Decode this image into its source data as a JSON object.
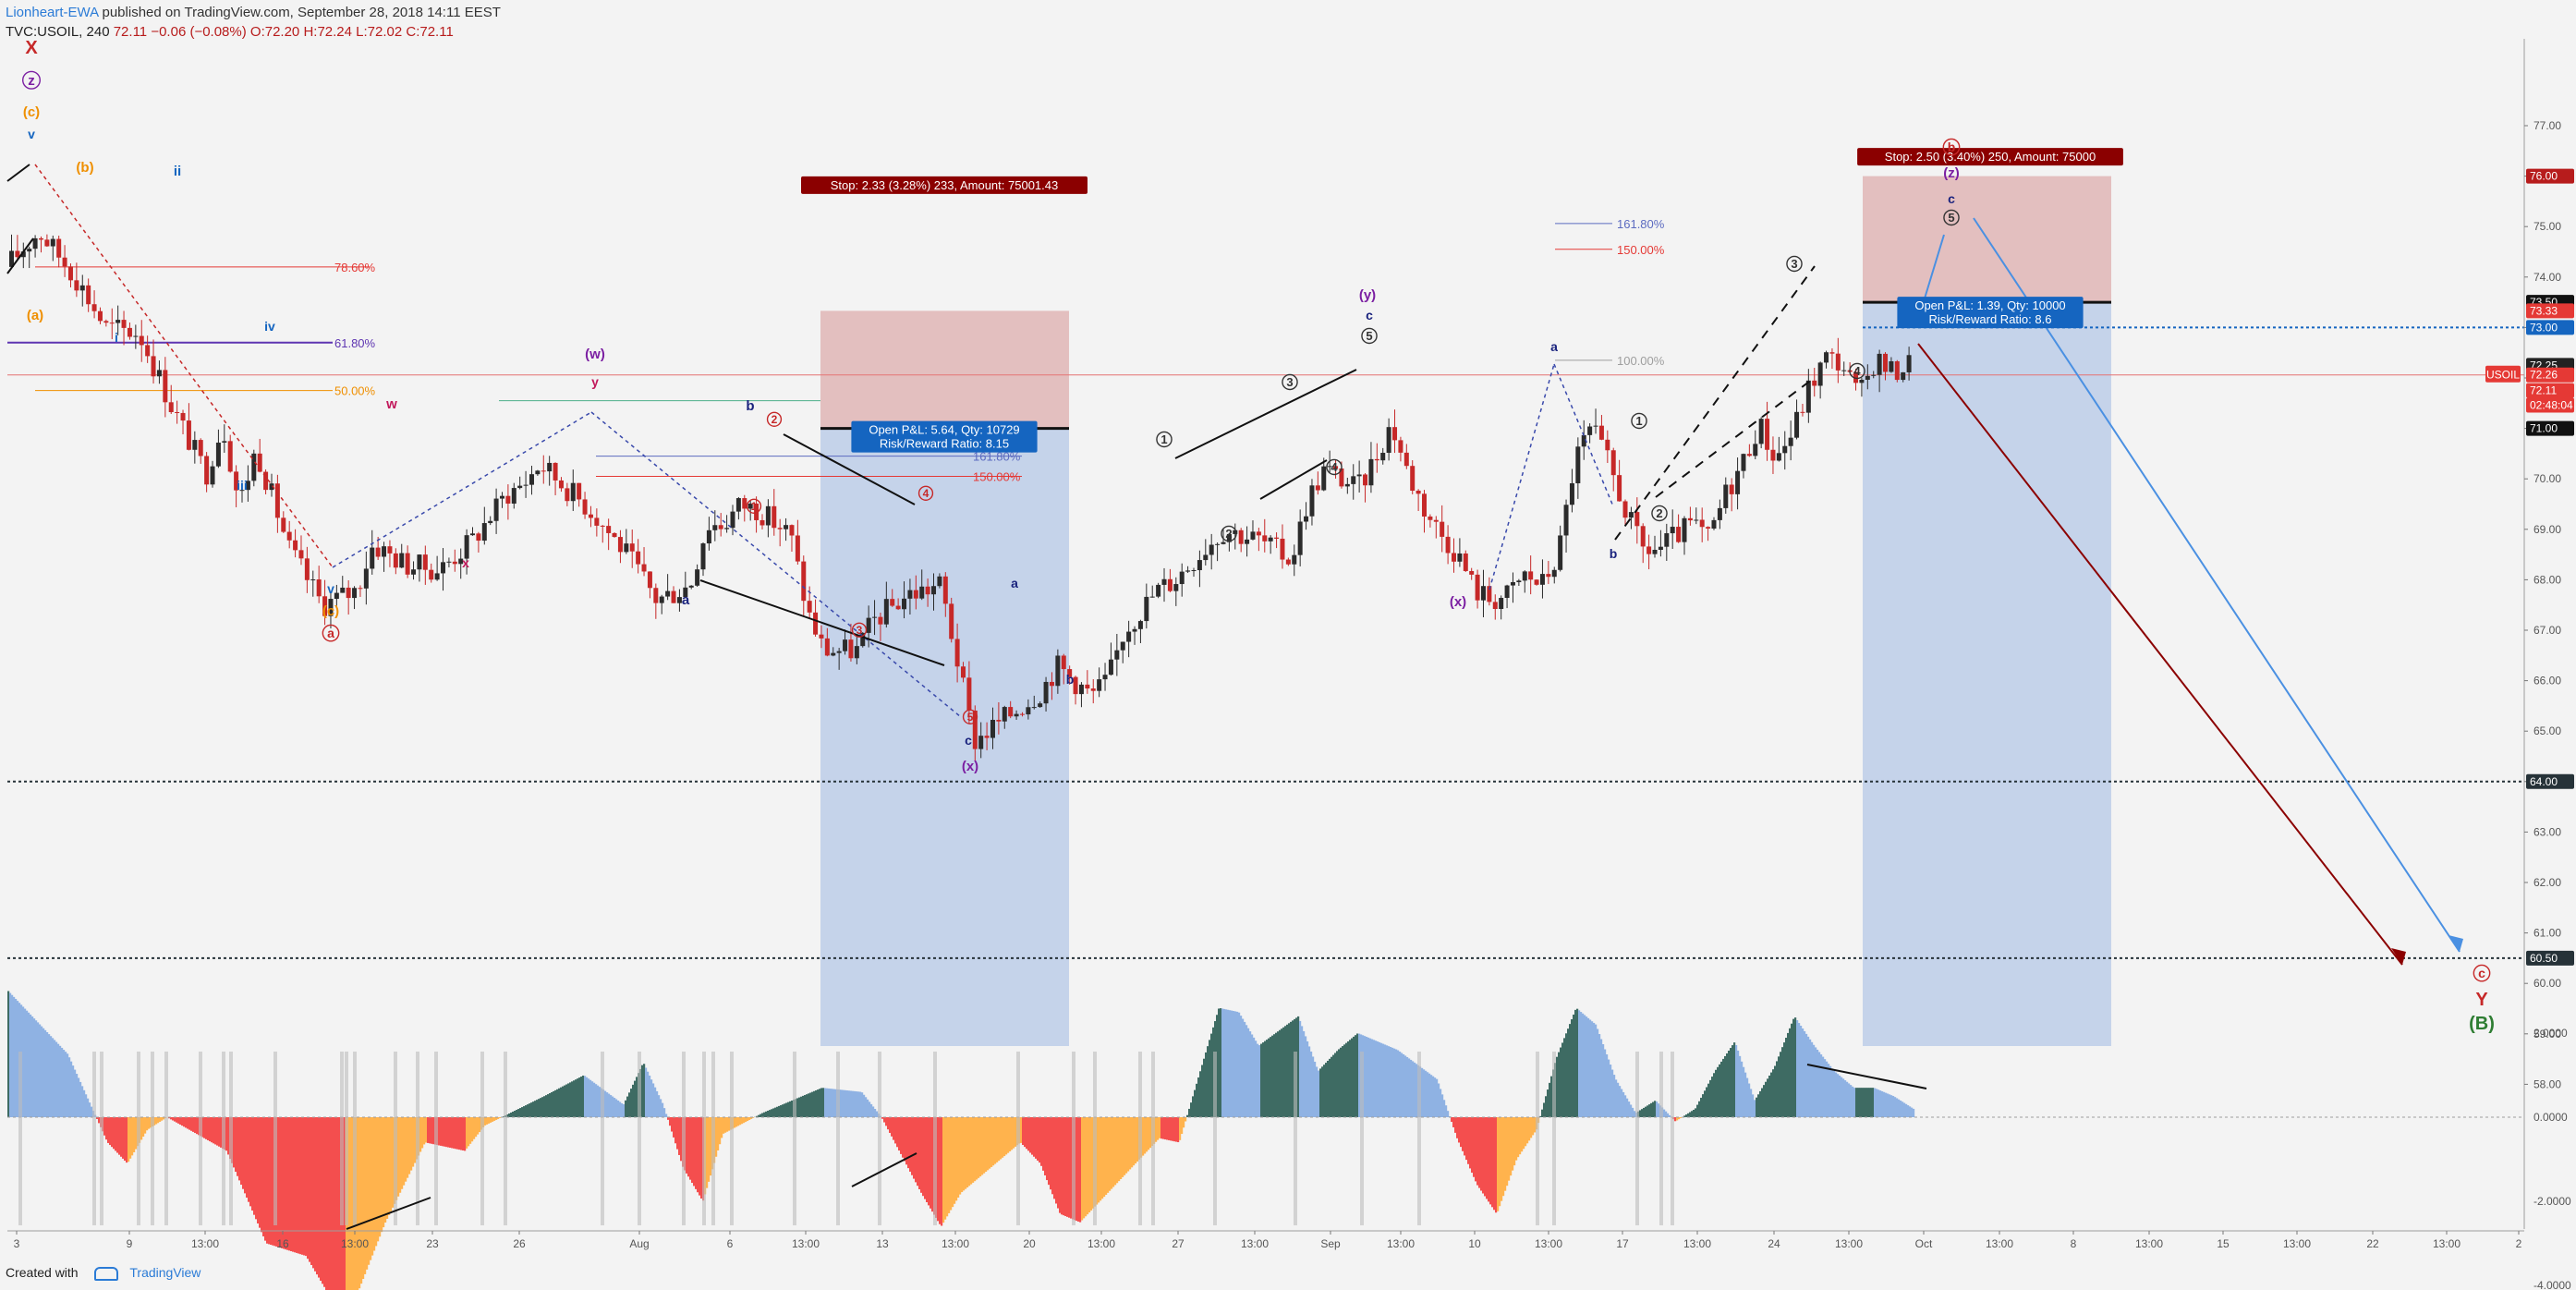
{
  "header": {
    "author": "Lionheart-EWA",
    "published": " published on TradingView.com, September 28, 2018 14:11 EEST",
    "symbol": "TVC:USOIL, 240",
    "last": "72.11",
    "change": "−0.06 (−0.08%)",
    "ohlc": "O:72.20 H:72.24 L:72.02 C:72.11"
  },
  "footer": {
    "created_with": "Created with",
    "brand": "TradingView"
  },
  "colors": {
    "up": "#2b2b2b",
    "down": "#c62828",
    "box_stop": "#e3bfbf",
    "box_target": "#c5d3ea",
    "hist_strong_up": "#3e6b63",
    "hist_weak_up": "#8fb2e3",
    "hist_strong_down": "#f44e4e",
    "hist_weak_down": "#ffb34d"
  },
  "chart_data": [
    {
      "type": "candlestick",
      "title": "",
      "yaxis": {
        "ticks": [
          "77.00",
          "76.00",
          "75.00",
          "74.00",
          "73.00",
          "72.00",
          "71.00",
          "70.00",
          "69.00",
          "68.00",
          "67.00",
          "66.00",
          "65.00",
          "64.00",
          "63.00",
          "62.00",
          "61.00",
          "60.00",
          "59.00",
          "58.00"
        ],
        "ylim": [
          57.7,
          77.5
        ]
      },
      "xaxis": {
        "ticks": [
          "3",
          "9",
          "13:00",
          "16",
          "13:00",
          "23",
          "26",
          "Aug",
          "6",
          "13:00",
          "13",
          "13:00",
          "20",
          "13:00",
          "27",
          "13:00",
          "Sep",
          "13:00",
          "10",
          "13:00",
          "17",
          "13:00",
          "24",
          "13:00",
          "Oct",
          "13:00",
          "8",
          "13:00",
          "15",
          "13:00",
          "22",
          "13:00",
          "2"
        ]
      },
      "price_path": [
        [
          0,
          74.2
        ],
        [
          2,
          74.9
        ],
        [
          4,
          74.1
        ],
        [
          6,
          73.0
        ],
        [
          8,
          72.9
        ],
        [
          10,
          71.4
        ],
        [
          12,
          70.1
        ],
        [
          13,
          71.1
        ],
        [
          14,
          69.5
        ],
        [
          15,
          70.6
        ],
        [
          17,
          68.6
        ],
        [
          19,
          67.5
        ],
        [
          21,
          67.8
        ],
        [
          22,
          68.7
        ],
        [
          24,
          68.3
        ],
        [
          26,
          68.2
        ],
        [
          28,
          68.8
        ],
        [
          30,
          69.7
        ],
        [
          31,
          69.9
        ],
        [
          32,
          70.3
        ],
        [
          33,
          70.0
        ],
        [
          35,
          69.4
        ],
        [
          37,
          68.6
        ],
        [
          39,
          67.6
        ],
        [
          41,
          67.9
        ],
        [
          42,
          69.1
        ],
        [
          43,
          69.1
        ],
        [
          44,
          69.5
        ],
        [
          45,
          69.4
        ],
        [
          47,
          68.9
        ],
        [
          48,
          67.4
        ],
        [
          49,
          66.6
        ],
        [
          51,
          66.6
        ],
        [
          52,
          67.2
        ],
        [
          54,
          67.7
        ],
        [
          56,
          67.9
        ],
        [
          57,
          66.4
        ],
        [
          58,
          64.8
        ],
        [
          60,
          65.3
        ],
        [
          62,
          65.8
        ],
        [
          63,
          66.3
        ],
        [
          65,
          65.7
        ],
        [
          66,
          66.0
        ],
        [
          67,
          67.0
        ],
        [
          69,
          67.8
        ],
        [
          70,
          68.0
        ],
        [
          72,
          68.7
        ],
        [
          73,
          69.0
        ],
        [
          75,
          68.8
        ],
        [
          77,
          68.4
        ],
        [
          78,
          69.6
        ],
        [
          79,
          70.2
        ],
        [
          81,
          69.8
        ],
        [
          82,
          70.4
        ],
        [
          83,
          71.1
        ],
        [
          84,
          70.1
        ],
        [
          85,
          69.4
        ],
        [
          86,
          68.9
        ],
        [
          87,
          68.5
        ],
        [
          88,
          67.8
        ],
        [
          89,
          67.6
        ],
        [
          90,
          67.7
        ],
        [
          91,
          68.1
        ],
        [
          92,
          67.9
        ],
        [
          93,
          68.5
        ],
        [
          94,
          70.4
        ],
        [
          95,
          71.0
        ],
        [
          96,
          70.3
        ],
        [
          97,
          69.4
        ],
        [
          98,
          68.6
        ],
        [
          99,
          68.6
        ],
        [
          101,
          69.1
        ],
        [
          102,
          68.8
        ],
        [
          103,
          69.7
        ],
        [
          104,
          70.3
        ],
        [
          105,
          71.1
        ],
        [
          106,
          70.4
        ],
        [
          107,
          70.9
        ],
        [
          108,
          71.8
        ],
        [
          109,
          72.4
        ],
        [
          110,
          72.3
        ],
        [
          111,
          71.6
        ],
        [
          112,
          72.4
        ],
        [
          113,
          72.1
        ],
        [
          114,
          72.3
        ]
      ]
    },
    {
      "type": "area",
      "title": "",
      "yaxis": {
        "ticks": [
          "2.0000",
          "0.0000",
          "-2.0000",
          "-4.0000"
        ],
        "ylim": [
          -5.0,
          3.0
        ]
      },
      "osc_path": [
        [
          0,
          3.0
        ],
        [
          3,
          1.5
        ],
        [
          5,
          -0.6
        ],
        [
          6,
          -1.1
        ],
        [
          7,
          -0.3
        ],
        [
          8,
          0.0
        ],
        [
          11,
          -0.8
        ],
        [
          13,
          -3.0
        ],
        [
          15,
          -3.3
        ],
        [
          17,
          -4.9
        ],
        [
          19,
          -2.5
        ],
        [
          21,
          -0.6
        ],
        [
          23,
          -0.8
        ],
        [
          24,
          -0.2
        ],
        [
          27,
          0.5
        ],
        [
          29,
          1.0
        ],
        [
          31,
          0.3
        ],
        [
          32,
          1.3
        ],
        [
          33,
          0.3
        ],
        [
          34,
          -1.2
        ],
        [
          35,
          -2.0
        ],
        [
          36,
          -0.4
        ],
        [
          38,
          0.1
        ],
        [
          41,
          0.7
        ],
        [
          43,
          0.6
        ],
        [
          44,
          0.0
        ],
        [
          46,
          -1.8
        ],
        [
          47,
          -2.6
        ],
        [
          48,
          -1.8
        ],
        [
          50,
          -1.0
        ],
        [
          51,
          -0.6
        ],
        [
          52,
          -1.1
        ],
        [
          53,
          -2.3
        ],
        [
          54,
          -2.5
        ],
        [
          56,
          -1.5
        ],
        [
          58,
          -0.5
        ],
        [
          59,
          -0.6
        ],
        [
          61,
          2.6
        ],
        [
          62,
          2.5
        ],
        [
          63,
          1.7
        ],
        [
          65,
          2.4
        ],
        [
          66,
          1.1
        ],
        [
          67,
          1.6
        ],
        [
          68,
          2.0
        ],
        [
          70,
          1.6
        ],
        [
          72,
          0.9
        ],
        [
          73,
          -0.5
        ],
        [
          74,
          -1.6
        ],
        [
          75,
          -2.3
        ],
        [
          76,
          -1.0
        ],
        [
          77,
          -0.3
        ],
        [
          78,
          1.4
        ],
        [
          79,
          2.6
        ],
        [
          80,
          2.2
        ],
        [
          81,
          0.9
        ],
        [
          82,
          0.1
        ],
        [
          83,
          0.4
        ],
        [
          84,
          -0.1
        ],
        [
          85,
          0.2
        ],
        [
          86,
          1.1
        ],
        [
          87,
          1.8
        ],
        [
          88,
          0.4
        ],
        [
          89,
          1.2
        ],
        [
          90,
          2.4
        ],
        [
          91,
          1.7
        ],
        [
          92,
          1.1
        ],
        [
          93,
          0.7
        ],
        [
          94,
          0.7
        ],
        [
          95,
          0.5
        ],
        [
          96,
          0.2
        ]
      ]
    }
  ],
  "price_tags": [
    {
      "text": "76.00",
      "price": 76.0,
      "color": "#b71c1c"
    },
    {
      "text": "73.50",
      "price": 73.5,
      "color": "#111111"
    },
    {
      "text": "73.33",
      "price": 73.33,
      "color": "#e53935"
    },
    {
      "text": "73.00",
      "price": 73.0,
      "color": "#1565c0"
    },
    {
      "text": "72.25",
      "price": 72.25,
      "color": "#222222"
    },
    {
      "text": "72.26",
      "price": 72.06,
      "color": "#e53935"
    },
    {
      "text": "72.11",
      "price": 71.75,
      "color": "#e53935"
    },
    {
      "text": "02:48:04",
      "price": 71.46,
      "color": "#e53935"
    },
    {
      "text": "71.00",
      "price": 71.0,
      "color": "#111111"
    },
    {
      "text": "64.00",
      "price": 64.0,
      "color": "#263238"
    },
    {
      "text": "60.50",
      "price": 60.5,
      "color": "#263238"
    }
  ],
  "symbol_tag": "USOIL",
  "osc_tags": [
    "2.0000",
    "0.0000",
    "-2.0000",
    "-4.0000"
  ],
  "fib_levels": [
    {
      "label": "78.60%",
      "color": "#e53935"
    },
    {
      "label": "61.80%",
      "color": "#5e35b1"
    },
    {
      "label": "50.00%",
      "color": "#ef8f00"
    },
    {
      "label": "161.80%",
      "color": "#5c6bc0"
    },
    {
      "label": "150.00%",
      "color": "#e53935"
    },
    {
      "label": "161.80%",
      "color": "#5c6bc0"
    },
    {
      "label": "150.00%",
      "color": "#e53935"
    },
    {
      "label": "100.00%",
      "color": "#9e9e9e"
    }
  ],
  "positions": [
    {
      "stop_label": "Stop: 2.33 (3.28%) 233, Amount: 75001.43",
      "pnl": "Open P&L: 5.64, Qty: 10729",
      "rr": "Risk/Reward Ratio: 8.15"
    },
    {
      "stop_label": "Stop: 2.50 (3.40%) 250, Amount: 75000",
      "pnl": "Open P&L: 1.39, Qty: 10000",
      "rr": "Risk/Reward Ratio: 8.6"
    }
  ],
  "wave_labels": [
    {
      "text": "X",
      "color": "#c62828"
    },
    {
      "text": "z",
      "color": "#7b1fa2"
    },
    {
      "text": "(c)",
      "color": "#ef8f00"
    },
    {
      "text": "v",
      "color": "#1565c0"
    },
    {
      "text": "(b)",
      "color": "#ef8f00"
    },
    {
      "text": "ii",
      "color": "#1565c0"
    },
    {
      "text": "(a)",
      "color": "#ef8f00"
    },
    {
      "text": "i",
      "color": "#1565c0"
    },
    {
      "text": "iv",
      "color": "#1565c0"
    },
    {
      "text": "iii",
      "color": "#1565c0"
    },
    {
      "text": "v",
      "color": "#1565c0"
    },
    {
      "text": "(c)",
      "color": "#ef8f00"
    },
    {
      "text": "a",
      "color": "#c62828"
    },
    {
      "text": "w",
      "color": "#c2185b"
    },
    {
      "text": "x",
      "color": "#c2185b"
    },
    {
      "text": "(w)",
      "color": "#7b1fa2"
    },
    {
      "text": "y",
      "color": "#c2185b"
    },
    {
      "text": "b",
      "color": "#1a237e"
    },
    {
      "text": "a",
      "color": "#1a237e"
    },
    {
      "text": "2",
      "color": "#c62828"
    },
    {
      "text": "1",
      "color": "#c62828"
    },
    {
      "text": "3",
      "color": "#c62828"
    },
    {
      "text": "4",
      "color": "#c62828"
    },
    {
      "text": "5",
      "color": "#c62828"
    },
    {
      "text": "c",
      "color": "#1a237e"
    },
    {
      "text": "(x)",
      "color": "#7b1fa2"
    },
    {
      "text": "a",
      "color": "#1a237e"
    },
    {
      "text": "b",
      "color": "#1a237e"
    },
    {
      "text": "(y)",
      "color": "#7b1fa2"
    },
    {
      "text": "c",
      "color": "#1a237e"
    },
    {
      "text": "5",
      "color": "#333333"
    },
    {
      "text": "1",
      "color": "#333333"
    },
    {
      "text": "2",
      "color": "#333333"
    },
    {
      "text": "3",
      "color": "#333333"
    },
    {
      "text": "4",
      "color": "#333333"
    },
    {
      "text": "(x)",
      "color": "#7b1fa2"
    },
    {
      "text": "a",
      "color": "#1a237e"
    },
    {
      "text": "b",
      "color": "#1a237e"
    },
    {
      "text": "1",
      "color": "#333333"
    },
    {
      "text": "2",
      "color": "#333333"
    },
    {
      "text": "3",
      "color": "#333333"
    },
    {
      "text": "4",
      "color": "#333333"
    },
    {
      "text": "b",
      "color": "#c62828"
    },
    {
      "text": "(z)",
      "color": "#7b1fa2"
    },
    {
      "text": "c",
      "color": "#1a237e"
    },
    {
      "text": "5",
      "color": "#333333"
    },
    {
      "text": "c",
      "color": "#c62828"
    },
    {
      "text": "Y",
      "color": "#c62828"
    },
    {
      "text": "(B)",
      "color": "#2e7d32"
    }
  ]
}
